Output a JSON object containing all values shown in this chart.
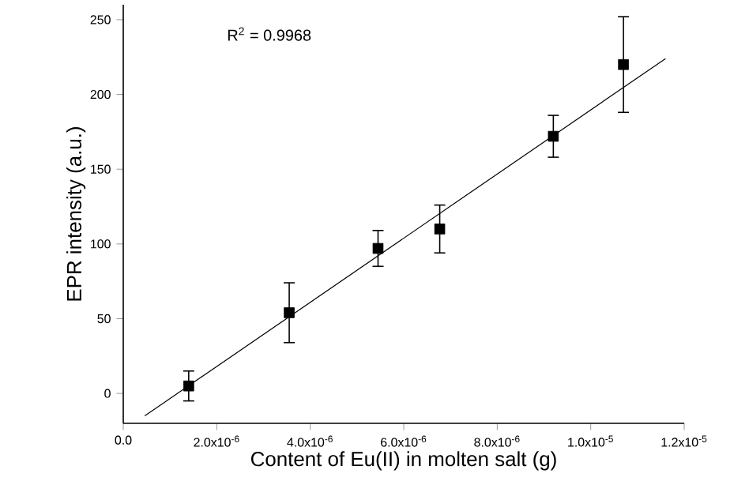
{
  "chart_data": {
    "type": "scatter",
    "xlabel": "Content of Eu(II) in molten salt (g)",
    "ylabel": "EPR intensity (a.u.)",
    "annotations": [
      "R$^{2}$ = 0.9968"
    ],
    "xlim": [
      0,
      1.2e-05
    ],
    "ylim": [
      -20,
      260
    ],
    "xticks": [
      {
        "value": 0,
        "label": "0.0"
      },
      {
        "value": 2e-06,
        "label": "2.0x10$^{-6}$"
      },
      {
        "value": 4e-06,
        "label": "4.0x10$^{-6}$"
      },
      {
        "value": 6e-06,
        "label": "6.0x10$^{-6}$"
      },
      {
        "value": 8e-06,
        "label": "8.0x10$^{-6}$"
      },
      {
        "value": 1e-05,
        "label": "1.0x10$^{-5}$"
      },
      {
        "value": 1.2e-05,
        "label": "1.2x10$^{-5}$"
      }
    ],
    "yticks": [
      0,
      50,
      100,
      150,
      200,
      250
    ],
    "grid": false,
    "marker": "square",
    "series": [
      {
        "color": "#000000",
        "x": [
          1.4e-06,
          3.55e-06,
          5.45e-06,
          6.77e-06,
          9.2e-06,
          1.07e-05
        ],
        "values": [
          5,
          54,
          97,
          110,
          172,
          220
        ],
        "errors": [
          10,
          20,
          12,
          16,
          14,
          32
        ]
      },
      {
        "type": "line",
        "color": "#000000",
        "marker": "none",
        "line_style": "solid",
        "x": [
          4.6e-07,
          1.16e-05
        ],
        "values": [
          -15,
          224
        ]
      }
    ]
  }
}
